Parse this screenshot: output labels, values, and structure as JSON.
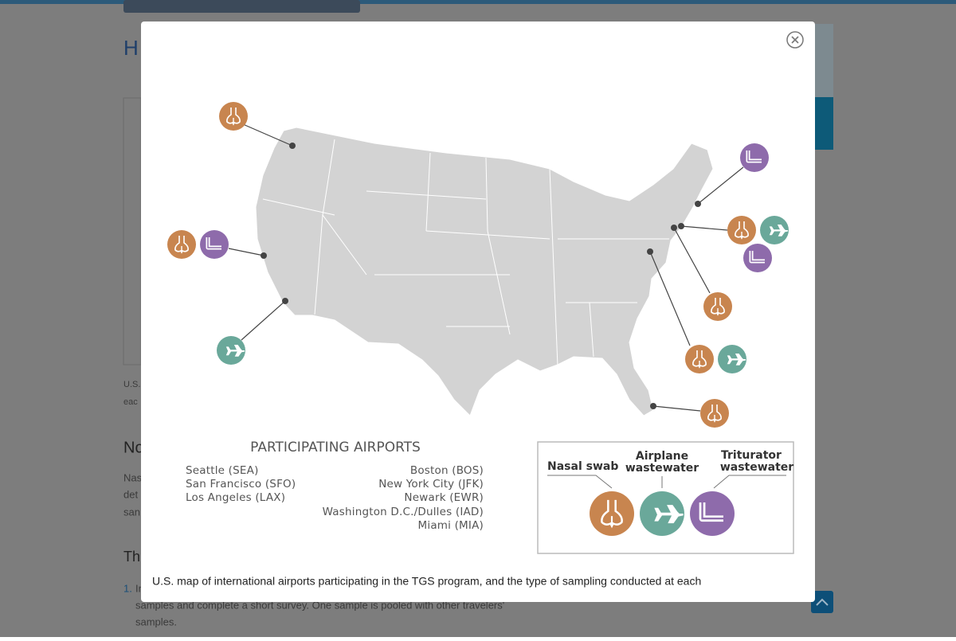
{
  "background": {
    "heading": "H",
    "caption_start": [
      "U.S.",
      "eac"
    ],
    "section_heading": "No",
    "para_start": [
      "Nas",
      "det",
      "san"
    ],
    "list_heading": "Th",
    "list_number": "1.",
    "list_text_start": "In",
    "list_line2": "samples and complete a short survey. One sample is pooled with other travelers'",
    "list_line3": "samples."
  },
  "modal": {
    "map_title": "PARTICIPATING AIRPORTS",
    "airports_left": [
      "Seattle (SEA)",
      "San Francisco (SFO)",
      "Los Angeles (LAX)"
    ],
    "airports_right": [
      "Boston (BOS)",
      "New York City (JFK)",
      "Newark (EWR)",
      "Washington D.C./Dulles (IAD)",
      "Miami (MIA)"
    ],
    "legend": {
      "nasal": "Nasal swab",
      "airplane": [
        "Airplane",
        "wastewater"
      ],
      "triturator": [
        "Triturator",
        "wastewater"
      ]
    },
    "caption": "U.S. map of international airports participating in the TGS program, and the type of sampling conducted at each"
  }
}
